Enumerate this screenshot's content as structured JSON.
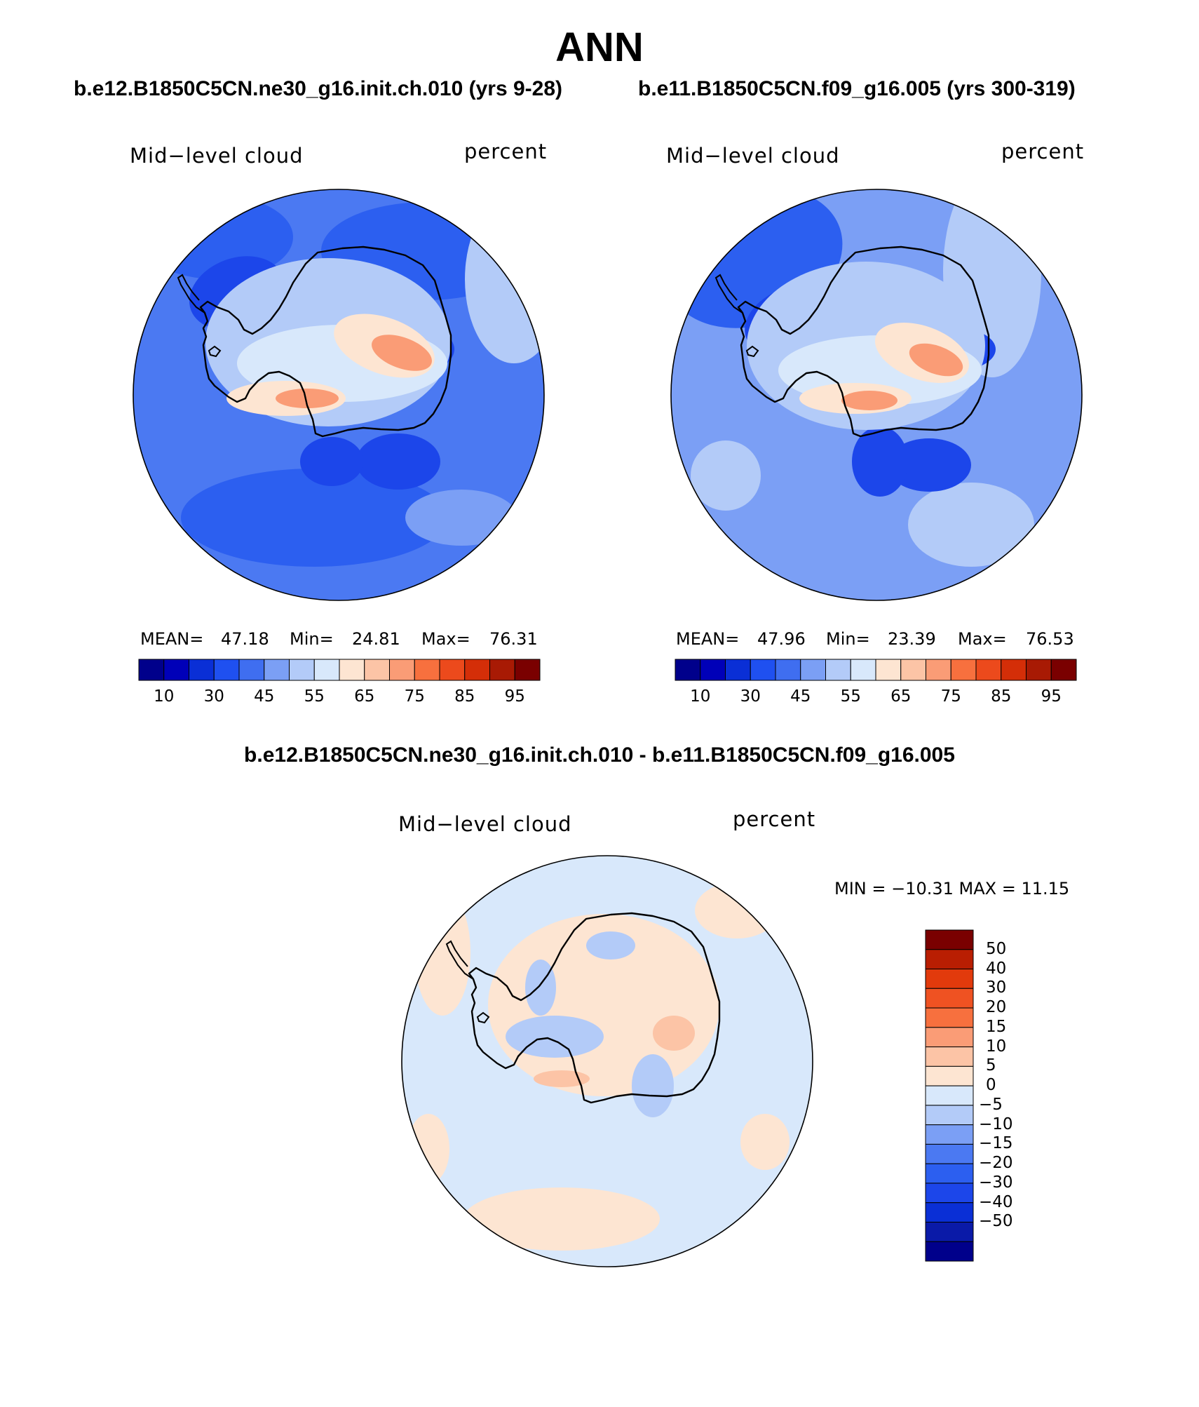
{
  "title": "ANN",
  "top_panels": [
    {
      "case_title": "b.e12.B1850C5CN.ne30_g16.init.ch.010 (yrs 9-28)",
      "variable": "Mid−level cloud",
      "units": "percent",
      "mean_label": "MEAN=",
      "mean": "47.18",
      "min_label": "Min=",
      "min": "24.81",
      "max_label": "Max=",
      "max": "76.31"
    },
    {
      "case_title": "b.e11.B1850C5CN.f09_g16.005 (yrs 300-319)",
      "variable": "Mid−level cloud",
      "units": "percent",
      "mean_label": "MEAN=",
      "mean": "47.96",
      "min_label": "Min=",
      "min": "23.39",
      "max_label": "Max=",
      "max": "76.53"
    }
  ],
  "diff_panel": {
    "title": "b.e12.B1850C5CN.ne30_g16.init.ch.010 - b.e11.B1850C5CN.f09_g16.005",
    "variable": "Mid−level cloud",
    "units": "percent",
    "min_max_text": "MIN = −10.31  MAX =   11.15"
  },
  "colors": {
    "abs_colorbar": [
      "#00008b",
      "#0000b8",
      "#0a2fd6",
      "#1f50f0",
      "#3f6ef0",
      "#7b9ff5",
      "#b3cbf8",
      "#d8e8fb",
      "#fde5d2",
      "#fcc4a6",
      "#fa9c76",
      "#f7703e",
      "#ec4a1c",
      "#d42e08",
      "#a81a04",
      "#7a0000"
    ],
    "diff_colorbar": [
      "#00008b",
      "#0a1aa8",
      "#0a2fd6",
      "#1c46ea",
      "#2c5ff0",
      "#4b79f2",
      "#7b9ff5",
      "#b3cbf8",
      "#d8e8fb",
      "#fde5d2",
      "#fcc4a6",
      "#fa9c76",
      "#f7703e",
      "#ef5222",
      "#e23a0c",
      "#b91e02",
      "#7a0000"
    ],
    "abs_fields": {
      "ocean_base": "#4b79f2",
      "ocean_dark": "#2c5ff0",
      "ocean_light": "#7b9ff5",
      "ocean_pale": "#b3cbf8",
      "deep": "#1c46ea",
      "ridge_light": "#d8e8fb",
      "ridge_warm": "#fde5d2",
      "ridge_hot": "#fa9c76"
    },
    "diff_fields": {
      "base": "#d8e8fb",
      "pos": "#fde5d2",
      "neg": "#b3cbf8",
      "strong_pos": "#fcc4a6"
    },
    "coast": "#000000"
  },
  "chart_data": [
    {
      "type": "heatmap",
      "projection": "south-polar stereographic",
      "title": "Mid−level cloud",
      "units": "percent",
      "case": "b.e12.B1850C5CN.ne30_g16.init.ch.010 (yrs 9-28)",
      "mean": 47.18,
      "min": 24.81,
      "max": 76.31,
      "colorbar_levels": [
        5,
        10,
        20,
        30,
        40,
        45,
        50,
        55,
        60,
        65,
        70,
        75,
        80,
        85,
        90,
        95
      ],
      "colorbar_tick_labels": [
        "10",
        "30",
        "45",
        "55",
        "65",
        "75",
        "85",
        "95"
      ]
    },
    {
      "type": "heatmap",
      "projection": "south-polar stereographic",
      "title": "Mid−level cloud",
      "units": "percent",
      "case": "b.e11.B1850C5CN.f09_g16.005 (yrs 300-319)",
      "mean": 47.96,
      "min": 23.39,
      "max": 76.53,
      "colorbar_levels": [
        5,
        10,
        20,
        30,
        40,
        45,
        50,
        55,
        60,
        65,
        70,
        75,
        80,
        85,
        90,
        95
      ],
      "colorbar_tick_labels": [
        "10",
        "30",
        "45",
        "55",
        "65",
        "75",
        "85",
        "95"
      ]
    },
    {
      "type": "heatmap",
      "projection": "south-polar stereographic",
      "title": "Mid−level cloud",
      "units": "percent",
      "case": "b.e12.B1850C5CN.ne30_g16.init.ch.010 - b.e11.B1850C5CN.f09_g16.005",
      "min": -10.31,
      "max": 11.15,
      "colorbar_tick_labels": [
        "50",
        "40",
        "30",
        "20",
        "15",
        "10",
        "5",
        "0",
        "−5",
        "−10",
        "−15",
        "−20",
        "−30",
        "−40",
        "−50"
      ]
    }
  ]
}
